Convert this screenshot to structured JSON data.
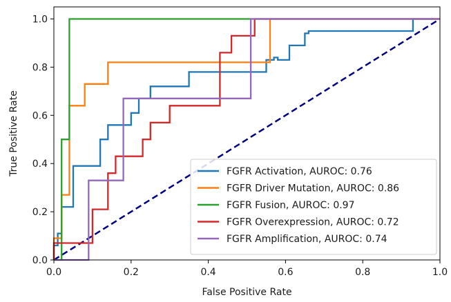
{
  "chart_data": {
    "type": "line",
    "xlabel": "False Positive Rate",
    "ylabel": "True Positive Rate",
    "xlim": [
      0.0,
      1.0
    ],
    "ylim": [
      0.0,
      1.05
    ],
    "x_ticks": [
      "0.0",
      "0.2",
      "0.4",
      "0.6",
      "0.8",
      "1.0"
    ],
    "y_ticks": [
      "0.0",
      "0.2",
      "0.4",
      "0.6",
      "0.8",
      "1.0"
    ],
    "grid": false,
    "legend_position": "lower-right",
    "series": [
      {
        "name": "FGFR Activation, AUROC: 0.76",
        "color": "#1f77b4",
        "x": [
          0.0,
          0.0,
          0.01,
          0.01,
          0.02,
          0.02,
          0.05,
          0.05,
          0.12,
          0.12,
          0.14,
          0.14,
          0.2,
          0.2,
          0.22,
          0.22,
          0.25,
          0.25,
          0.35,
          0.35,
          0.55,
          0.55,
          0.57,
          0.57,
          0.58,
          0.58,
          0.61,
          0.61,
          0.65,
          0.65,
          0.66,
          0.66,
          0.93,
          0.93,
          1.0
        ],
        "y": [
          0.0,
          0.06,
          0.06,
          0.11,
          0.11,
          0.22,
          0.22,
          0.39,
          0.39,
          0.5,
          0.5,
          0.56,
          0.56,
          0.61,
          0.61,
          0.67,
          0.67,
          0.72,
          0.72,
          0.78,
          0.78,
          0.83,
          0.83,
          0.84,
          0.84,
          0.83,
          0.83,
          0.89,
          0.89,
          0.94,
          0.94,
          0.95,
          0.95,
          1.0,
          1.0
        ]
      },
      {
        "name": "FGFR Driver Mutation, AUROC: 0.86",
        "color": "#ff7f0e",
        "x": [
          0.0,
          0.0,
          0.02,
          0.02,
          0.04,
          0.04,
          0.06,
          0.06,
          0.08,
          0.08,
          0.14,
          0.14,
          0.55,
          0.55,
          0.56,
          0.56,
          1.0
        ],
        "y": [
          0.0,
          0.09,
          0.09,
          0.27,
          0.27,
          0.64,
          0.64,
          0.64,
          0.64,
          0.73,
          0.73,
          0.82,
          0.82,
          0.82,
          0.82,
          1.0,
          1.0
        ]
      },
      {
        "name": "FGFR Fusion, AUROC: 0.97",
        "color": "#2ca02c",
        "x": [
          0.0,
          0.0,
          0.02,
          0.02,
          0.04,
          0.04,
          1.0
        ],
        "y": [
          0.0,
          0.0,
          0.0,
          0.5,
          0.5,
          1.0,
          1.0
        ]
      },
      {
        "name": "FGFR Overexpression, AUROC: 0.72",
        "color": "#d62728",
        "x": [
          0.0,
          0.0,
          0.02,
          0.02,
          0.1,
          0.1,
          0.14,
          0.14,
          0.16,
          0.16,
          0.2,
          0.2,
          0.23,
          0.23,
          0.25,
          0.25,
          0.3,
          0.3,
          0.36,
          0.36,
          0.38,
          0.38,
          0.39,
          0.39,
          0.42,
          0.42,
          0.43,
          0.43,
          0.46,
          0.46,
          0.5,
          0.5,
          0.52,
          0.52,
          0.66,
          0.66,
          1.0
        ],
        "y": [
          0.0,
          0.07,
          0.07,
          0.07,
          0.07,
          0.21,
          0.21,
          0.36,
          0.36,
          0.43,
          0.43,
          0.43,
          0.43,
          0.5,
          0.5,
          0.57,
          0.57,
          0.64,
          0.64,
          0.64,
          0.64,
          0.64,
          0.64,
          0.64,
          0.64,
          0.64,
          0.64,
          0.86,
          0.86,
          0.93,
          0.93,
          0.93,
          0.93,
          1.0,
          1.0,
          1.0,
          1.0
        ]
      },
      {
        "name": "FGFR Amplification, AUROC: 0.74",
        "color": "#9467bd",
        "x": [
          0.0,
          0.0,
          0.09,
          0.09,
          0.14,
          0.14,
          0.18,
          0.18,
          0.51,
          0.51,
          0.52,
          0.52,
          1.0
        ],
        "y": [
          0.0,
          0.0,
          0.0,
          0.33,
          0.33,
          0.33,
          0.33,
          0.67,
          0.67,
          1.0,
          1.0,
          1.0,
          1.0
        ]
      }
    ],
    "reference_line": {
      "x": [
        0.0,
        1.0
      ],
      "y": [
        0.0,
        1.0
      ],
      "color": "#000080",
      "style": "dashed"
    }
  }
}
